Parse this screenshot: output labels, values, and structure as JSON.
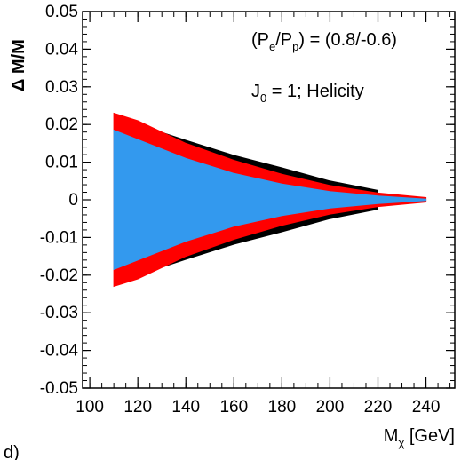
{
  "panel_label": "d)",
  "chart_data": {
    "type": "area",
    "xlabel": "M",
    "xlabel_sub": "χ",
    "xlabel_unit": " [GeV]",
    "ylabel": "Δ M/M",
    "xlim": [
      97,
      252
    ],
    "ylim": [
      -0.05,
      0.05
    ],
    "xticks": [
      100,
      120,
      140,
      160,
      180,
      200,
      220,
      240
    ],
    "yticks": [
      0.05,
      0.04,
      0.03,
      0.02,
      0.01,
      0,
      -0.01,
      -0.02,
      -0.03,
      -0.04,
      -0.05
    ],
    "ytick_labels": [
      "0.05",
      "0.04",
      "0.03",
      "0.02",
      "0.01",
      "0",
      "-0.01",
      "-0.02",
      "-0.03",
      "-0.04",
      "-0.05"
    ],
    "annotations": [
      {
        "parts": [
          "(P",
          "e",
          "/P",
          "p",
          ") = (0.8/-0.6)"
        ],
        "sub": [
          false,
          true,
          false,
          true,
          false
        ]
      },
      {
        "parts": [
          "J",
          "0",
          " = 1; Helicity"
        ],
        "sub": [
          false,
          true,
          false
        ]
      }
    ],
    "series": [
      {
        "color": "#000000",
        "x": [
          120,
          140,
          160,
          180,
          200,
          220
        ],
        "upper": [
          0.02,
          0.0158,
          0.0118,
          0.0085,
          0.005,
          0.0025
        ],
        "lower": [
          -0.02,
          -0.0158,
          -0.0118,
          -0.0085,
          -0.005,
          -0.0025
        ]
      },
      {
        "color": "#ff0000",
        "x": [
          110,
          120,
          140,
          160,
          180,
          200,
          220,
          240
        ],
        "upper": [
          0.023,
          0.021,
          0.015,
          0.0105,
          0.0068,
          0.0038,
          0.0018,
          0.0006
        ],
        "lower": [
          -0.023,
          -0.021,
          -0.015,
          -0.0105,
          -0.0068,
          -0.0038,
          -0.0018,
          -0.0006
        ]
      },
      {
        "color": "#3399ee",
        "x": [
          110,
          120,
          140,
          160,
          180,
          200,
          220,
          240
        ],
        "upper": [
          0.0185,
          0.016,
          0.011,
          0.007,
          0.0042,
          0.0022,
          0.001,
          0.0002
        ],
        "lower": [
          -0.0185,
          -0.016,
          -0.011,
          -0.007,
          -0.0042,
          -0.0022,
          -0.001,
          -0.0002
        ]
      }
    ]
  }
}
